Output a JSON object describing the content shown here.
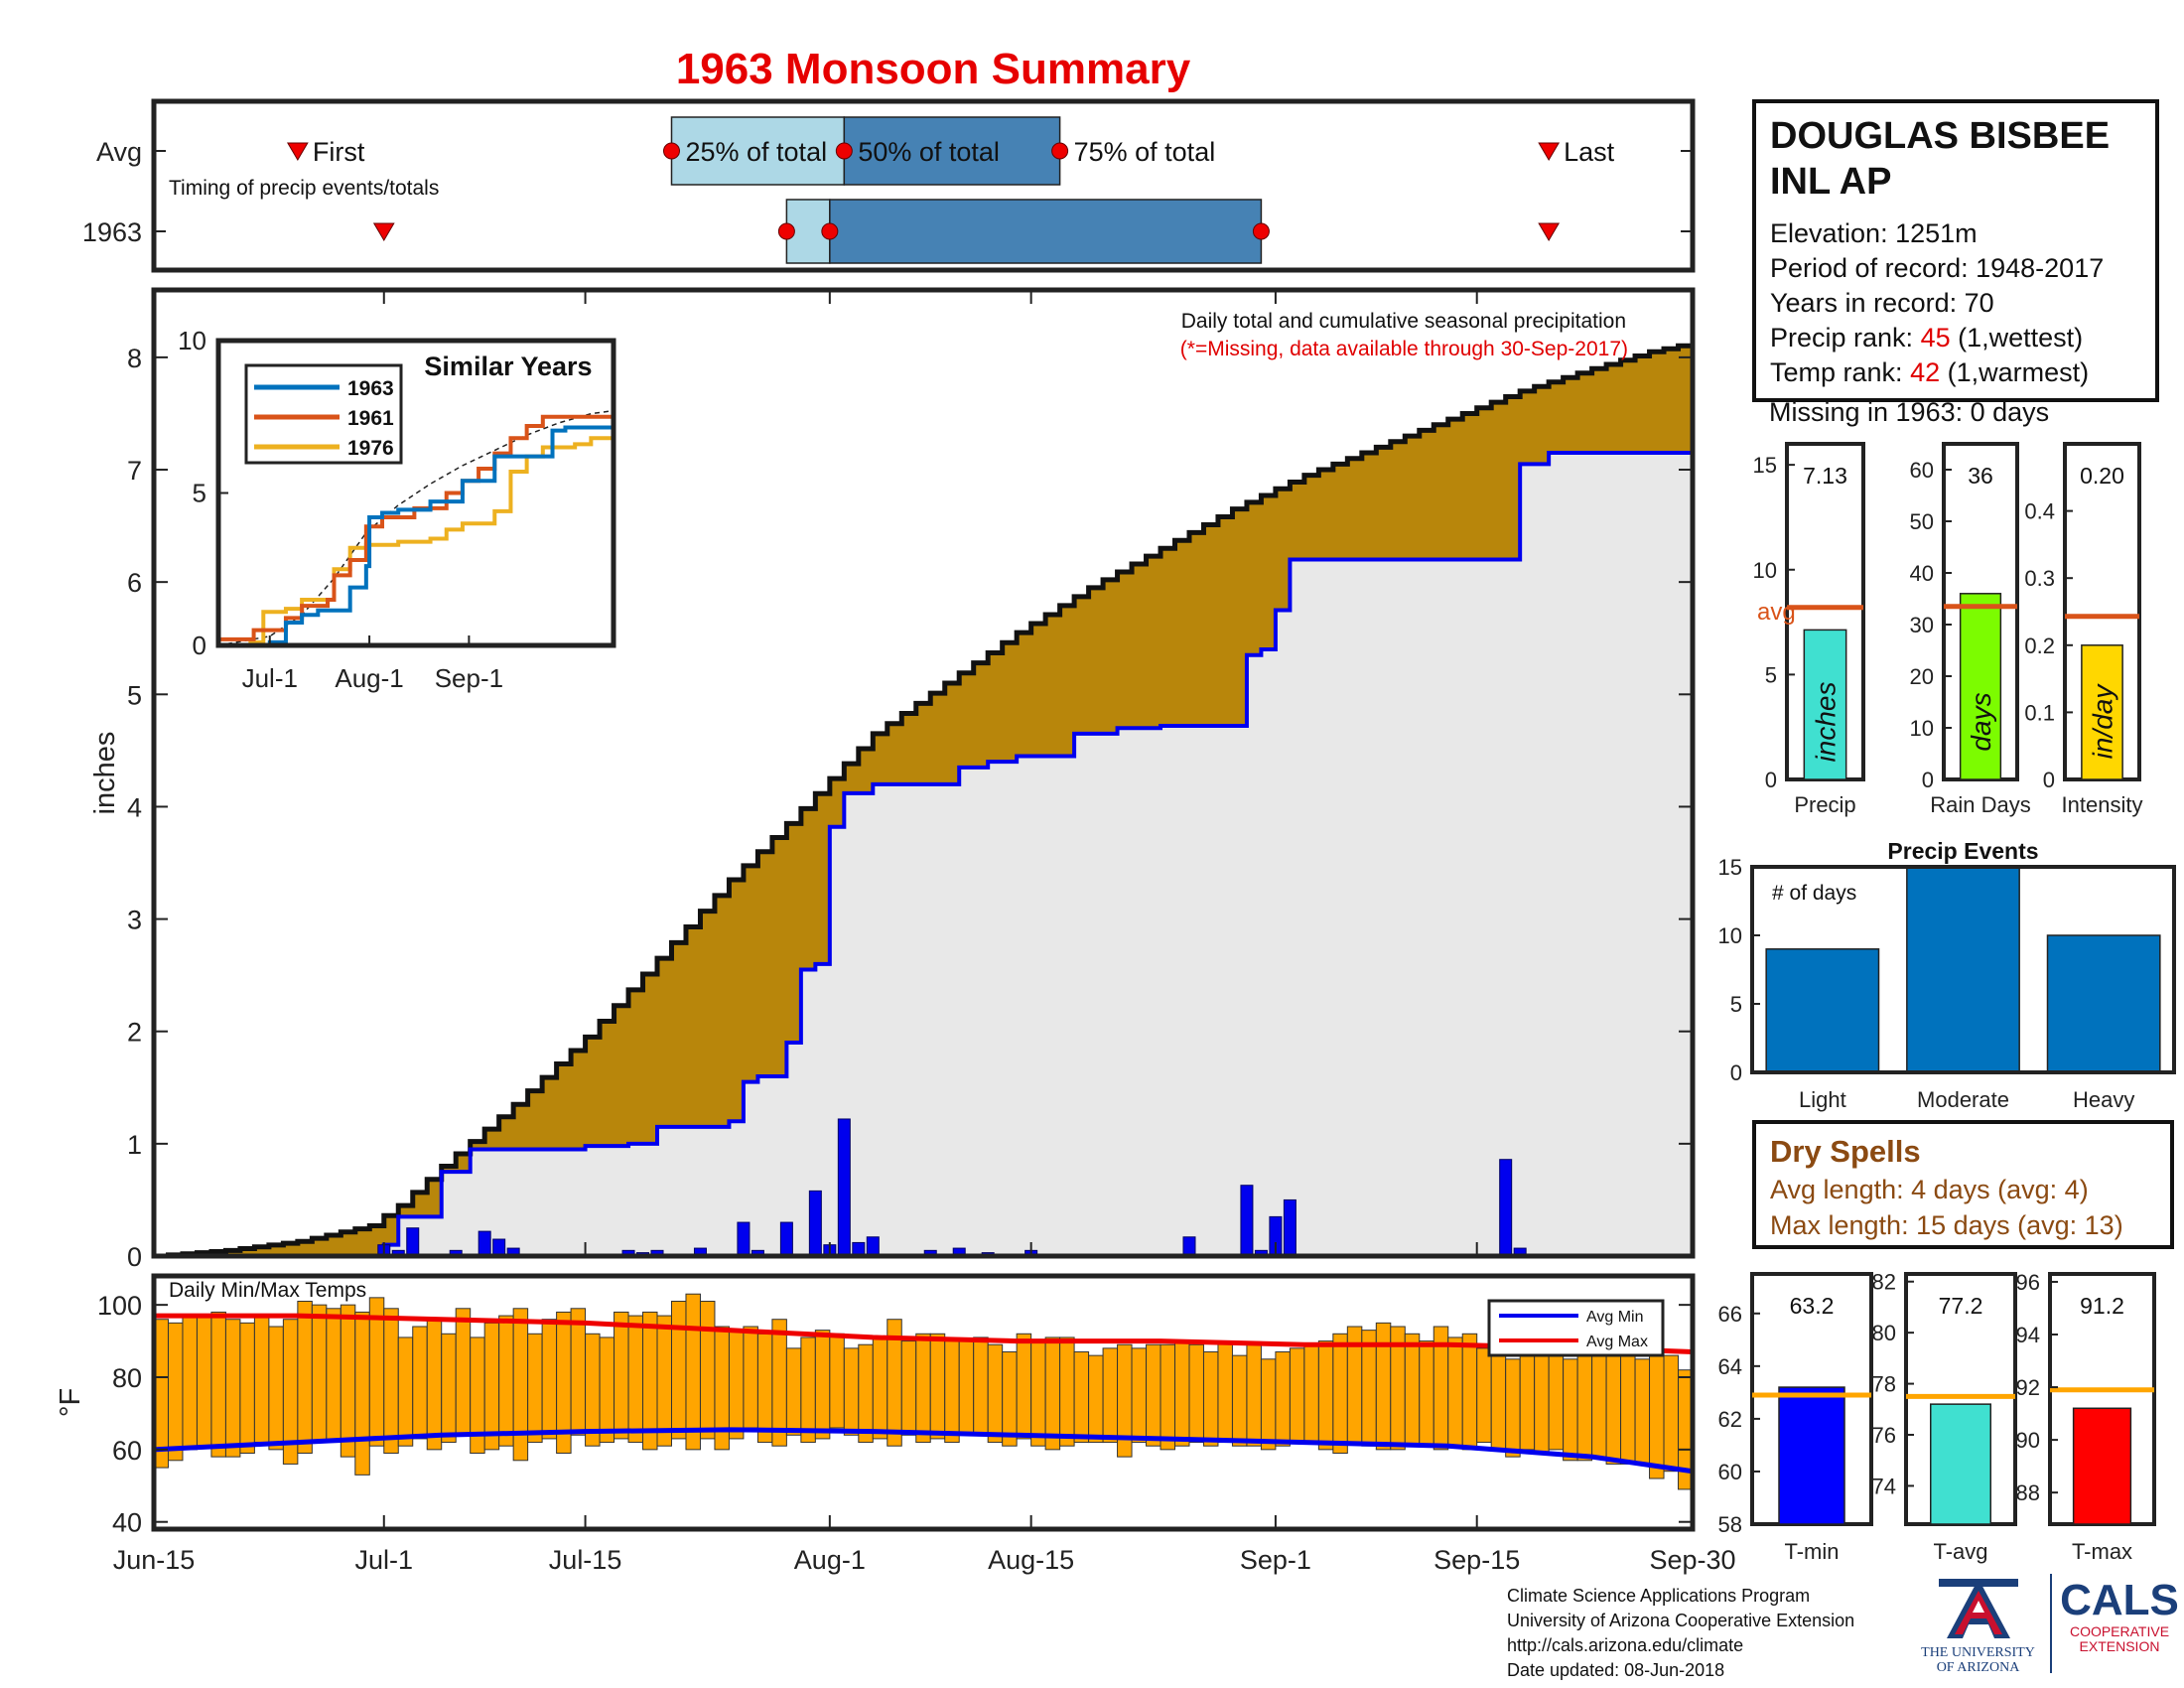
{
  "title": "1963 Monsoon Summary",
  "station": {
    "name_line1": "DOUGLAS BISBEE",
    "name_line2": "INL AP",
    "elevation": "Elevation: 1251m",
    "period": "Period of record: 1948-2017",
    "years": "Years in record: 70",
    "precip_rank_label": "Precip rank:",
    "precip_rank_value": "45",
    "precip_rank_note": "(1,wettest)",
    "temp_rank_label": "Temp rank:",
    "temp_rank_value": "42",
    "temp_rank_note": "(1,warmest)",
    "missing": "Missing in 1963: 0 days"
  },
  "dry_spells": {
    "title": "Dry Spells",
    "avg": "Avg length: 4 days (avg: 4)",
    "max": "Max length: 15 days (avg: 13)"
  },
  "credits": {
    "line1": "Climate Science Applications Program",
    "line2": "University of Arizona Cooperative Extension",
    "line3": "http://cals.arizona.edu/climate",
    "line4": "Date updated: 08-Jun-2018",
    "ua_line1": "THE UNIVERSITY",
    "ua_line2": "OF ARIZONA",
    "cals": "CALS",
    "cals_line1": "COOPERATIVE",
    "cals_line2": "EXTENSION"
  },
  "colors": {
    "brown_fill": "#b8860b",
    "blue_bar": "#0000ee",
    "light_blue": "#add8e6",
    "steel_blue": "#4682b4",
    "orange": "#ffa500",
    "red": "#ee0000"
  },
  "chart_data": [
    {
      "type": "timeline",
      "ylabels": [
        "Avg",
        "1963"
      ],
      "annotation": "Timing of precip events/totals",
      "labels": {
        "first": "First",
        "p25": "25% of total",
        "p50": "50% of total",
        "p75": "75% of total",
        "last": "Last"
      },
      "x_day_range": [
        0,
        107
      ],
      "avg": {
        "first": 10,
        "p25": 36,
        "p50": 48,
        "p75": 63,
        "last": 97
      },
      "year": {
        "first": 16,
        "p25": 44,
        "p50": 47,
        "p75": 77,
        "last": 97
      }
    },
    {
      "type": "area",
      "title": "Daily total and cumulative seasonal precipitation",
      "subtitle": "(*=Missing, data available through 30-Sep-2017)",
      "ylabel": "inches",
      "ylim": [
        0,
        8.6
      ],
      "yticks": [
        0,
        1,
        2,
        3,
        4,
        5,
        6,
        7,
        8
      ],
      "xlim": [
        0,
        107
      ],
      "xticks": [
        {
          "d": 0,
          "label": "Jun-15"
        },
        {
          "d": 16,
          "label": "Jul-1"
        },
        {
          "d": 30,
          "label": "Jul-15"
        },
        {
          "d": 47,
          "label": "Aug-1"
        },
        {
          "d": 61,
          "label": "Aug-15"
        },
        {
          "d": 78,
          "label": "Sep-1"
        },
        {
          "d": 92,
          "label": "Sep-15"
        },
        {
          "d": 107,
          "label": "Sep-30"
        }
      ],
      "avg_cumulative": {
        "days": [
          0,
          5,
          10,
          15,
          17,
          20,
          25,
          30,
          35,
          40,
          44,
          47,
          50,
          55,
          60,
          65,
          70,
          75,
          80,
          85,
          90,
          95,
          100,
          104,
          107
        ],
        "values": [
          0,
          0.05,
          0.13,
          0.27,
          0.45,
          0.8,
          1.35,
          1.95,
          2.65,
          3.35,
          3.85,
          4.25,
          4.65,
          5.1,
          5.55,
          5.95,
          6.3,
          6.65,
          6.95,
          7.2,
          7.45,
          7.7,
          7.9,
          8.05,
          8.13
        ]
      },
      "cumulative_1963": {
        "days": [
          0,
          16,
          17,
          18,
          20,
          22,
          25,
          30,
          33,
          35,
          40,
          41,
          42,
          44,
          45,
          46,
          47,
          48,
          50,
          53,
          56,
          58,
          60,
          63,
          64,
          67,
          70,
          75,
          76,
          77,
          78,
          79,
          80,
          94,
          95,
          97,
          107
        ],
        "values": [
          0,
          0.1,
          0.35,
          0.35,
          0.75,
          0.95,
          0.95,
          0.98,
          1.0,
          1.15,
          1.2,
          1.55,
          1.6,
          1.9,
          2.55,
          2.6,
          3.82,
          4.12,
          4.2,
          4.2,
          4.35,
          4.4,
          4.45,
          4.45,
          4.65,
          4.7,
          4.72,
          4.72,
          5.35,
          5.4,
          5.75,
          6.2,
          6.2,
          6.2,
          7.05,
          7.15,
          7.15
        ]
      },
      "daily_bars": {
        "days": [
          16,
          17,
          18,
          21,
          23,
          24,
          25,
          33,
          34,
          35,
          38,
          41,
          42,
          44,
          46,
          47,
          48,
          49,
          50,
          54,
          56,
          58,
          61,
          72,
          76,
          77,
          78,
          79,
          94,
          95
        ],
        "values": [
          0.1,
          0.05,
          0.25,
          0.05,
          0.22,
          0.15,
          0.07,
          0.05,
          0.03,
          0.05,
          0.07,
          0.3,
          0.05,
          0.3,
          0.58,
          0.1,
          1.22,
          0.12,
          0.17,
          0.05,
          0.07,
          0.03,
          0.05,
          0.17,
          0.63,
          0.05,
          0.35,
          0.5,
          0.86,
          0.07
        ]
      }
    },
    {
      "type": "line",
      "title": "Similar Years",
      "xlim": [
        -16,
        107
      ],
      "ylim": [
        0,
        10
      ],
      "yticks": [
        0,
        5,
        10
      ],
      "xticks": [
        {
          "d": 0,
          "label": "Jul-1"
        },
        {
          "d": 31,
          "label": "Aug-1"
        },
        {
          "d": 62,
          "label": "Sep-1"
        }
      ],
      "series": [
        {
          "name": "1963",
          "color": "#0072bd",
          "x": [
            -16,
            0,
            5,
            10,
            15,
            25,
            30,
            31,
            35,
            40,
            50,
            60,
            70,
            75,
            80,
            85,
            88,
            92,
            107
          ],
          "y": [
            0,
            0.1,
            0.75,
            1.0,
            1.15,
            1.9,
            2.6,
            4.2,
            4.35,
            4.45,
            4.72,
            5.4,
            6.2,
            6.2,
            6.2,
            6.2,
            7.05,
            7.15,
            7.15
          ]
        },
        {
          "name": "1961",
          "color": "#d95319",
          "x": [
            -16,
            -5,
            5,
            10,
            18,
            20,
            25,
            30,
            35,
            45,
            55,
            60,
            65,
            70,
            75,
            80,
            85,
            92,
            107
          ],
          "y": [
            0.2,
            0.5,
            0.9,
            1.3,
            1.5,
            2.3,
            2.8,
            3.9,
            4.2,
            4.5,
            5.0,
            5.4,
            5.8,
            6.3,
            6.8,
            7.2,
            7.5,
            7.5,
            7.5
          ]
        },
        {
          "name": "1976",
          "color": "#edb120",
          "x": [
            -16,
            -6,
            -2,
            5,
            10,
            20,
            25,
            30,
            40,
            50,
            55,
            60,
            70,
            75,
            80,
            85,
            95,
            100,
            107
          ],
          "y": [
            0,
            0.1,
            1.1,
            1.2,
            1.5,
            2.5,
            3.2,
            3.3,
            3.4,
            3.5,
            3.8,
            4.0,
            4.4,
            5.7,
            6.2,
            6.5,
            6.6,
            6.8,
            6.9
          ]
        }
      ],
      "average_dashed": {
        "x": [
          -16,
          0,
          10,
          20,
          30,
          40,
          50,
          60,
          70,
          80,
          90,
          100,
          107
        ],
        "y": [
          0,
          0.3,
          1.0,
          2.2,
          3.7,
          4.6,
          5.3,
          5.9,
          6.4,
          6.9,
          7.3,
          7.6,
          7.7
        ]
      }
    },
    {
      "type": "bar",
      "label": "Precip",
      "unit": "inches",
      "value": 7.13,
      "value_label": "7.13",
      "avg": 8.2,
      "avg_label": "avg",
      "ylim": [
        0,
        16
      ],
      "yticks": [
        0,
        5,
        10,
        15
      ],
      "color": "#40e0d0"
    },
    {
      "type": "bar",
      "label": "Rain Days",
      "unit": "days",
      "value": 36,
      "value_label": "36",
      "avg": 33.5,
      "ylim": [
        0,
        65
      ],
      "yticks": [
        0,
        10,
        20,
        30,
        40,
        50,
        60
      ],
      "color": "#7cfc00"
    },
    {
      "type": "bar",
      "label": "Intensity",
      "unit": "in/day",
      "value": 0.2,
      "value_label": "0.20",
      "avg": 0.243,
      "ylim": [
        0,
        0.5
      ],
      "yticks": [
        0,
        0.1,
        0.2,
        0.3,
        0.4
      ],
      "color": "#ffd700"
    },
    {
      "type": "bar",
      "title": "Precip Events",
      "annotation": "# of days",
      "categories": [
        "Light",
        "Moderate",
        "Heavy"
      ],
      "values": [
        9,
        15,
        10
      ],
      "ylim": [
        0,
        15
      ],
      "yticks": [
        0,
        5,
        10,
        15
      ],
      "color": "#0072bd"
    },
    {
      "type": "bar",
      "title": "Daily Min/Max Temps",
      "ylabel": "°F",
      "ylim": [
        38,
        108
      ],
      "yticks": [
        40,
        60,
        80,
        100
      ],
      "legend": [
        "Avg Min",
        "Avg Max"
      ],
      "legend_position": "top-right",
      "xlim": [
        0,
        107
      ],
      "max_series": [
        96,
        95,
        97,
        97,
        98,
        96,
        95,
        97,
        94,
        96,
        101,
        100,
        99,
        100,
        98,
        102,
        99,
        91,
        94,
        96,
        92,
        99,
        91,
        95,
        97,
        99,
        92,
        96,
        98,
        99,
        92,
        91,
        98,
        97,
        98,
        97,
        101,
        103,
        101,
        94,
        93,
        94,
        92,
        96,
        88,
        91,
        93,
        92,
        88,
        89,
        91,
        96,
        90,
        92,
        92,
        90,
        90,
        91,
        89,
        87,
        92,
        90,
        91,
        91,
        87,
        86,
        88,
        89,
        88,
        89,
        89,
        90,
        89,
        87,
        90,
        86,
        89,
        85,
        87,
        88,
        89,
        90,
        92,
        94,
        93,
        95,
        94,
        92,
        90,
        94,
        91,
        92,
        88,
        89,
        85,
        87,
        86,
        86,
        85,
        88,
        89,
        86,
        87,
        85,
        87,
        86,
        82
      ],
      "min_series": [
        55,
        57,
        60,
        61,
        58,
        58,
        59,
        62,
        60,
        56,
        59,
        62,
        62,
        58,
        53,
        61,
        59,
        61,
        63,
        60,
        62,
        64,
        59,
        60,
        61,
        57,
        62,
        63,
        59,
        64,
        61,
        62,
        63,
        62,
        60,
        61,
        63,
        60,
        63,
        60,
        63,
        66,
        62,
        61,
        64,
        62,
        63,
        66,
        64,
        62,
        63,
        61,
        64,
        62,
        63,
        62,
        64,
        64,
        62,
        61,
        63,
        61,
        60,
        61,
        62,
        62,
        62,
        58,
        62,
        61,
        60,
        61,
        62,
        61,
        62,
        61,
        61,
        60,
        61,
        62,
        62,
        60,
        59,
        62,
        61,
        60,
        60,
        61,
        61,
        60,
        61,
        60,
        62,
        60,
        58,
        60,
        59,
        60,
        57,
        57,
        58,
        56,
        56,
        56,
        52,
        54,
        49
      ],
      "avg_min": {
        "days": [
          0,
          10,
          20,
          30,
          40,
          50,
          60,
          70,
          80,
          90,
          100,
          107
        ],
        "values": [
          60,
          62,
          64,
          65,
          65.5,
          65,
          64,
          63,
          62,
          61,
          58,
          54
        ]
      },
      "avg_max": {
        "days": [
          0,
          10,
          20,
          30,
          40,
          50,
          60,
          70,
          80,
          90,
          100,
          107
        ],
        "values": [
          97,
          97,
          96,
          95,
          93,
          91,
          90,
          90,
          89,
          89,
          88,
          87
        ]
      }
    },
    {
      "type": "bar",
      "label": "T-min",
      "value": 63.2,
      "value_label": "63.2",
      "avg": 62.9,
      "ylim": [
        58,
        67.5
      ],
      "yticks": [
        58,
        60,
        62,
        64,
        66
      ],
      "color": "#0000ff"
    },
    {
      "type": "bar",
      "label": "T-avg",
      "value": 77.2,
      "value_label": "77.2",
      "avg": 77.5,
      "ylim": [
        72.5,
        82.3
      ],
      "yticks": [
        74,
        76,
        78,
        80,
        82
      ],
      "color": "#40e0d0"
    },
    {
      "type": "bar",
      "label": "T-max",
      "value": 91.2,
      "value_label": "91.2",
      "avg": 91.9,
      "ylim": [
        86.8,
        96.3
      ],
      "yticks": [
        88,
        90,
        92,
        94,
        96
      ],
      "color": "#ff0000"
    }
  ]
}
